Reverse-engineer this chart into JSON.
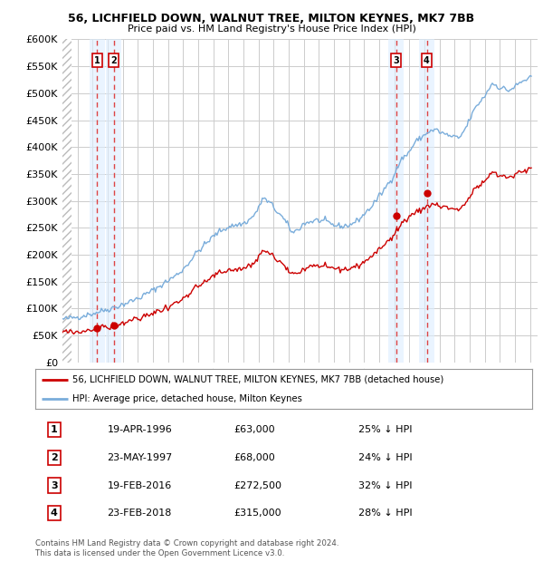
{
  "title": "56, LICHFIELD DOWN, WALNUT TREE, MILTON KEYNES, MK7 7BB",
  "subtitle": "Price paid vs. HM Land Registry's House Price Index (HPI)",
  "footer1": "Contains HM Land Registry data © Crown copyright and database right 2024.",
  "footer2": "This data is licensed under the Open Government Licence v3.0.",
  "legend_label_red": "56, LICHFIELD DOWN, WALNUT TREE, MILTON KEYNES, MK7 7BB (detached house)",
  "legend_label_blue": "HPI: Average price, detached house, Milton Keynes",
  "table_rows": [
    [
      "1",
      "19-APR-1996",
      "£63,000",
      "25% ↓ HPI"
    ],
    [
      "2",
      "23-MAY-1997",
      "£68,000",
      "24% ↓ HPI"
    ],
    [
      "3",
      "19-FEB-2016",
      "£272,500",
      "32% ↓ HPI"
    ],
    [
      "4",
      "23-FEB-2018",
      "£315,000",
      "28% ↓ HPI"
    ]
  ],
  "ylim": [
    0,
    600000
  ],
  "yticks": [
    0,
    50000,
    100000,
    150000,
    200000,
    250000,
    300000,
    350000,
    400000,
    450000,
    500000,
    550000,
    600000
  ],
  "xlim_start": 1994.0,
  "xlim_end": 2025.5,
  "background_color": "#ffffff",
  "grid_color": "#cccccc",
  "hatch_color": "#bbbbbb",
  "red_line_color": "#cc0000",
  "blue_line_color": "#7aaddb",
  "red_dot_color": "#cc0000",
  "vline_color": "#dd4444",
  "shade_color": "#ddeeff",
  "box_color": "#cc0000",
  "transaction_dates": [
    1996.3,
    1997.4,
    2016.12,
    2018.15
  ],
  "transaction_prices": [
    63000,
    68000,
    272500,
    315000
  ]
}
